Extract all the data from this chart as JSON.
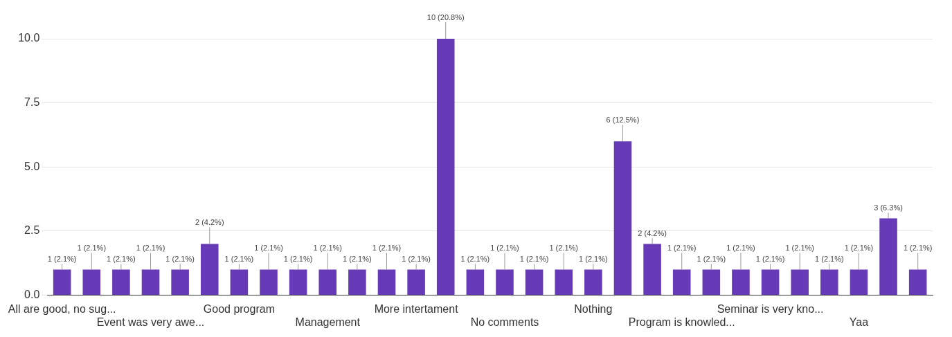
{
  "chart_data": {
    "type": "bar",
    "categories": [
      "All are good, no sug...",
      null,
      null,
      "Event was very awe...",
      null,
      null,
      "Good program",
      null,
      null,
      "Management",
      null,
      null,
      "More intertament",
      null,
      null,
      "No comments",
      null,
      null,
      "Nothing",
      null,
      null,
      "Program is knowled...",
      null,
      null,
      "Seminar is very kno...",
      null,
      null,
      "Yaa",
      null,
      null
    ],
    "values": [
      1,
      1,
      1,
      1,
      1,
      2,
      1,
      1,
      1,
      1,
      1,
      1,
      1,
      10,
      1,
      1,
      1,
      1,
      1,
      6,
      2,
      1,
      1,
      1,
      1,
      1,
      1,
      1,
      3,
      1
    ],
    "value_labels": [
      "1 (2.1%)",
      "1 (2.1%)",
      "1 (2.1%)",
      "1 (2.1%)",
      "1 (2.1%)",
      "2 (4.2%)",
      "1 (2.1%)",
      "1 (2.1%)",
      "1 (2.1%)",
      "1 (2.1%)",
      "1 (2.1%)",
      "1 (2.1%)",
      "1 (2.1%)",
      "10 (20.8%)",
      "1 (2.1%)",
      "1 (2.1%)",
      "1 (2.1%)",
      "1 (2.1%)",
      "1 (2.1%)",
      "6 (12.5%)",
      "2 (4.2%)",
      "1 (2.1%)",
      "1 (2.1%)",
      "1 (2.1%)",
      "1 (2.1%)",
      "1 (2.1%)",
      "1 (2.1%)",
      "1 (2.1%)",
      "3 (6.3%)",
      "1 (2.1%)"
    ],
    "color": "#673ab7",
    "ylim": [
      0,
      10
    ],
    "yticks": [
      {
        "value": 0,
        "label": "0.0"
      },
      {
        "value": 2.5,
        "label": "2.5"
      },
      {
        "value": 5,
        "label": "5.0"
      },
      {
        "value": 7.5,
        "label": "7.5"
      },
      {
        "value": 10,
        "label": "10.0"
      }
    ],
    "grid": "y"
  }
}
